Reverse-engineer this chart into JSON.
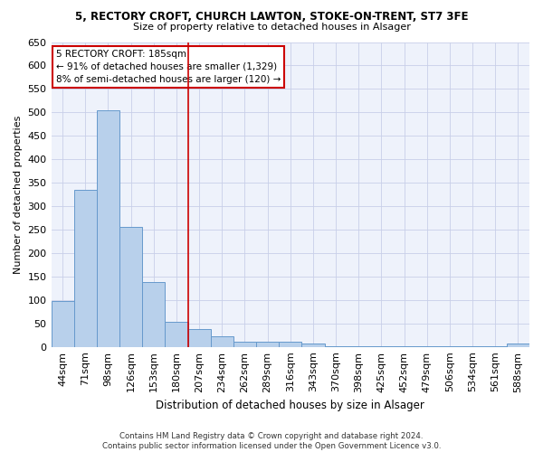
{
  "title": "5, RECTORY CROFT, CHURCH LAWTON, STOKE-ON-TRENT, ST7 3FE",
  "subtitle": "Size of property relative to detached houses in Alsager",
  "xlabel": "Distribution of detached houses by size in Alsager",
  "ylabel": "Number of detached properties",
  "categories": [
    "44sqm",
    "71sqm",
    "98sqm",
    "126sqm",
    "153sqm",
    "180sqm",
    "207sqm",
    "234sqm",
    "262sqm",
    "289sqm",
    "316sqm",
    "343sqm",
    "370sqm",
    "398sqm",
    "425sqm",
    "452sqm",
    "479sqm",
    "506sqm",
    "534sqm",
    "561sqm",
    "588sqm"
  ],
  "values": [
    97,
    335,
    505,
    255,
    138,
    53,
    37,
    22,
    10,
    10,
    10,
    7,
    2,
    2,
    2,
    2,
    2,
    2,
    2,
    2,
    7
  ],
  "bar_color": "#b8d0eb",
  "bar_edgecolor": "#6699cc",
  "vline_x": 5.5,
  "vline_color": "#cc0000",
  "annotation_text": "5 RECTORY CROFT: 185sqm\n← 91% of detached houses are smaller (1,329)\n8% of semi-detached houses are larger (120) →",
  "annotation_box_edgecolor": "#cc0000",
  "annotation_box_facecolor": "white",
  "ylim": [
    0,
    650
  ],
  "yticks": [
    0,
    50,
    100,
    150,
    200,
    250,
    300,
    350,
    400,
    450,
    500,
    550,
    600,
    650
  ],
  "footnote": "Contains HM Land Registry data © Crown copyright and database right 2024.\nContains public sector information licensed under the Open Government Licence v3.0.",
  "bg_color": "#eef2fb",
  "grid_color": "#c8cfe8"
}
